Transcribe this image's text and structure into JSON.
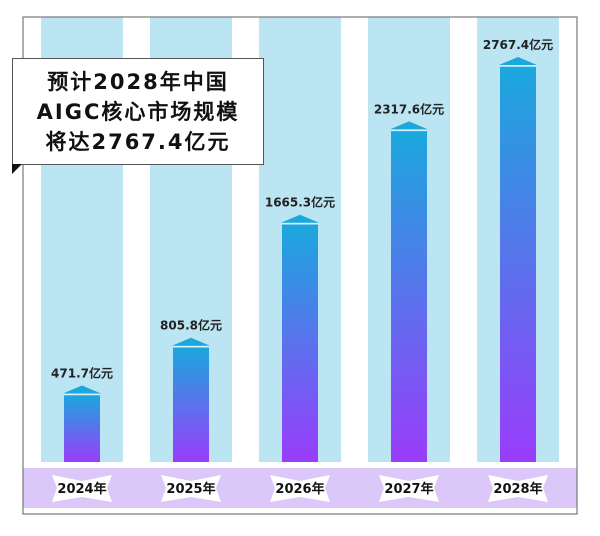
{
  "chart_data": {
    "type": "bar",
    "title": [
      "预计2028年中国",
      "AIGC核心市场规模",
      "将达2767.4亿元"
    ],
    "categories": [
      "2024年",
      "2025年",
      "2026年",
      "2027年",
      "2028年"
    ],
    "values": [
      471.7,
      805.8,
      1665.3,
      2317.6,
      2767.4
    ],
    "data_labels": [
      "471.7亿元",
      "805.8亿元",
      "1665.3亿元",
      "2317.6亿元",
      "2767.4亿元"
    ],
    "unit": "亿元",
    "ylim": [
      0,
      2767.4
    ],
    "grid": false,
    "colors": {
      "column_bg": "#bbe5f3",
      "bar_top": "#1aa8dd",
      "bar_bottom": "#9a3cfb",
      "band": "#dcc8f8",
      "frame": "#777777"
    }
  }
}
